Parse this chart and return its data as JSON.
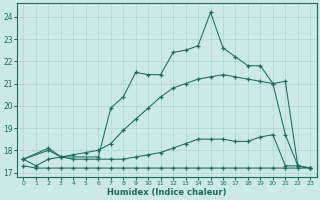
{
  "xlabel": "Humidex (Indice chaleur)",
  "background_color": "#cce8e8",
  "grid_color": "#aad4d4",
  "line_color": "#1a6b60",
  "xlim": [
    -0.5,
    23.5
  ],
  "ylim": [
    16.8,
    24.6
  ],
  "yticks": [
    17,
    18,
    19,
    20,
    21,
    22,
    23,
    24
  ],
  "xticks": [
    0,
    1,
    2,
    3,
    4,
    5,
    6,
    7,
    8,
    9,
    10,
    11,
    12,
    13,
    14,
    15,
    16,
    17,
    18,
    19,
    20,
    21,
    22,
    23
  ],
  "series": [
    {
      "x": [
        0,
        1,
        2,
        3,
        4,
        5,
        6,
        7,
        8,
        9,
        10,
        11,
        12,
        13,
        14,
        15,
        16,
        17,
        18,
        19,
        20,
        21,
        22,
        23
      ],
      "y": [
        17.3,
        17.2,
        17.2,
        17.2,
        17.2,
        17.2,
        17.2,
        17.2,
        17.2,
        17.2,
        17.2,
        17.2,
        17.2,
        17.2,
        17.2,
        17.2,
        17.2,
        17.2,
        17.2,
        17.2,
        17.2,
        17.2,
        17.2,
        17.2
      ]
    },
    {
      "x": [
        0,
        1,
        2,
        3,
        4,
        5,
        6,
        7,
        8,
        9,
        10,
        11,
        12,
        13,
        14,
        15,
        16,
        17,
        18,
        19,
        20,
        21,
        22,
        23
      ],
      "y": [
        17.6,
        17.3,
        17.6,
        17.7,
        17.6,
        17.6,
        17.6,
        17.6,
        17.6,
        17.7,
        17.8,
        17.9,
        18.1,
        18.3,
        18.5,
        18.5,
        18.5,
        18.4,
        18.4,
        18.6,
        18.7,
        17.3,
        17.3,
        17.2
      ]
    },
    {
      "x": [
        0,
        2,
        3,
        4,
        5,
        6,
        7,
        8,
        9,
        10,
        11,
        12,
        13,
        14,
        15,
        16,
        17,
        18,
        19,
        20,
        21,
        22,
        23
      ],
      "y": [
        17.6,
        18.1,
        17.7,
        17.8,
        17.9,
        18.0,
        18.3,
        18.9,
        19.4,
        19.9,
        20.4,
        20.8,
        21.0,
        21.2,
        21.3,
        21.4,
        21.3,
        21.2,
        21.1,
        21.0,
        21.1,
        17.3,
        17.2
      ]
    },
    {
      "x": [
        0,
        2,
        3,
        6,
        7,
        8,
        9,
        10,
        11,
        12,
        13,
        14,
        15,
        16,
        17,
        18,
        19,
        20,
        21,
        22,
        23
      ],
      "y": [
        17.6,
        18.0,
        17.7,
        17.7,
        19.9,
        20.4,
        21.5,
        21.4,
        21.4,
        22.4,
        22.5,
        22.7,
        24.2,
        22.6,
        22.2,
        21.8,
        21.8,
        21.0,
        18.7,
        17.3,
        17.2
      ]
    }
  ]
}
